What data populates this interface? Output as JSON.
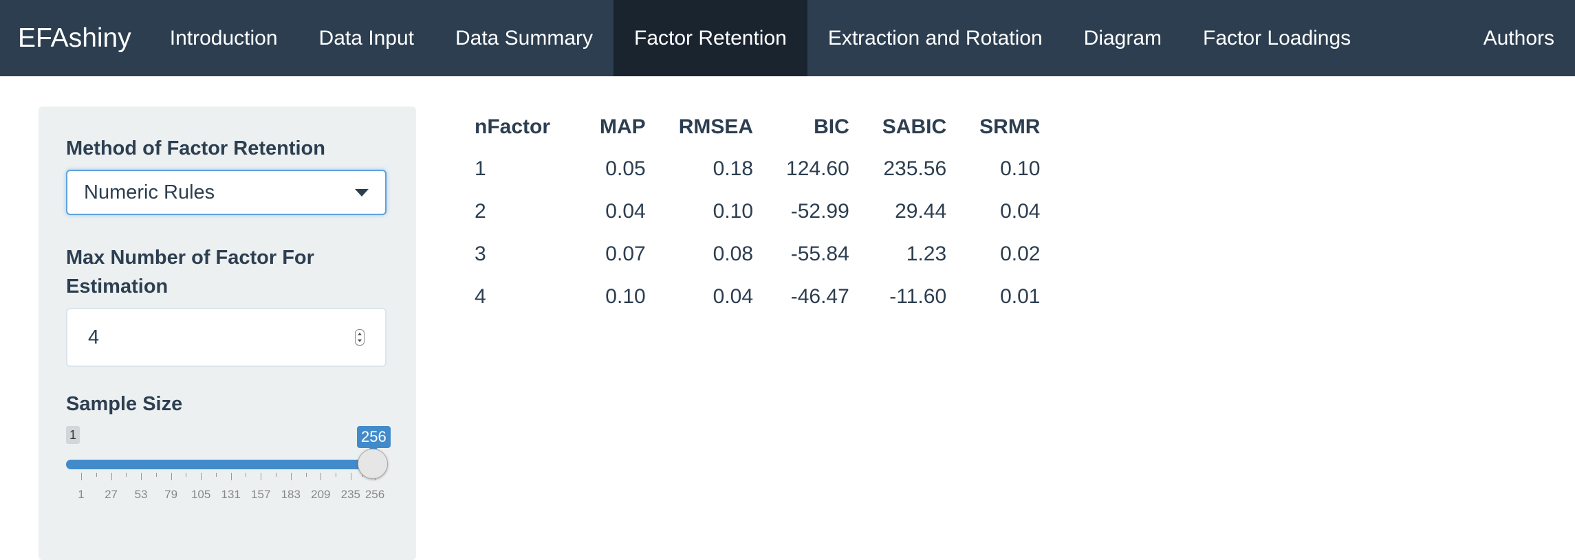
{
  "navbar": {
    "brand": "EFAshiny",
    "tabs": [
      {
        "label": "Introduction",
        "active": false
      },
      {
        "label": "Data Input",
        "active": false
      },
      {
        "label": "Data Summary",
        "active": false
      },
      {
        "label": "Factor Retention",
        "active": true
      },
      {
        "label": "Extraction and Rotation",
        "active": false
      },
      {
        "label": "Diagram",
        "active": false
      },
      {
        "label": "Factor Loadings",
        "active": false
      }
    ],
    "right_tab": "Authors"
  },
  "sidebar": {
    "method_label": "Method of Factor Retention",
    "method_value": "Numeric Rules",
    "max_factor_label_line1": "Max Number of Factor For",
    "max_factor_label_line2": "Estimation",
    "max_factor_value": "4",
    "sample_size_label": "Sample Size",
    "slider": {
      "min_badge": "1",
      "value_badge": "256",
      "min": 1,
      "max": 256,
      "value": 256,
      "tick_labels": [
        "1",
        "27",
        "53",
        "79",
        "105",
        "131",
        "157",
        "183",
        "209",
        "235",
        "256"
      ],
      "tick_values": [
        1,
        27,
        53,
        79,
        105,
        131,
        157,
        183,
        209,
        235,
        256
      ]
    }
  },
  "table": {
    "columns": [
      "nFactor",
      "MAP",
      "RMSEA",
      "BIC",
      "SABIC",
      "SRMR"
    ],
    "rows": [
      [
        "1",
        "0.05",
        "0.18",
        "124.60",
        "235.56",
        "0.10"
      ],
      [
        "2",
        "0.04",
        "0.10",
        "-52.99",
        "29.44",
        "0.04"
      ],
      [
        "3",
        "0.07",
        "0.08",
        "-55.84",
        "1.23",
        "0.02"
      ],
      [
        "4",
        "0.10",
        "0.04",
        "-46.47",
        "-11.60",
        "0.01"
      ]
    ]
  }
}
